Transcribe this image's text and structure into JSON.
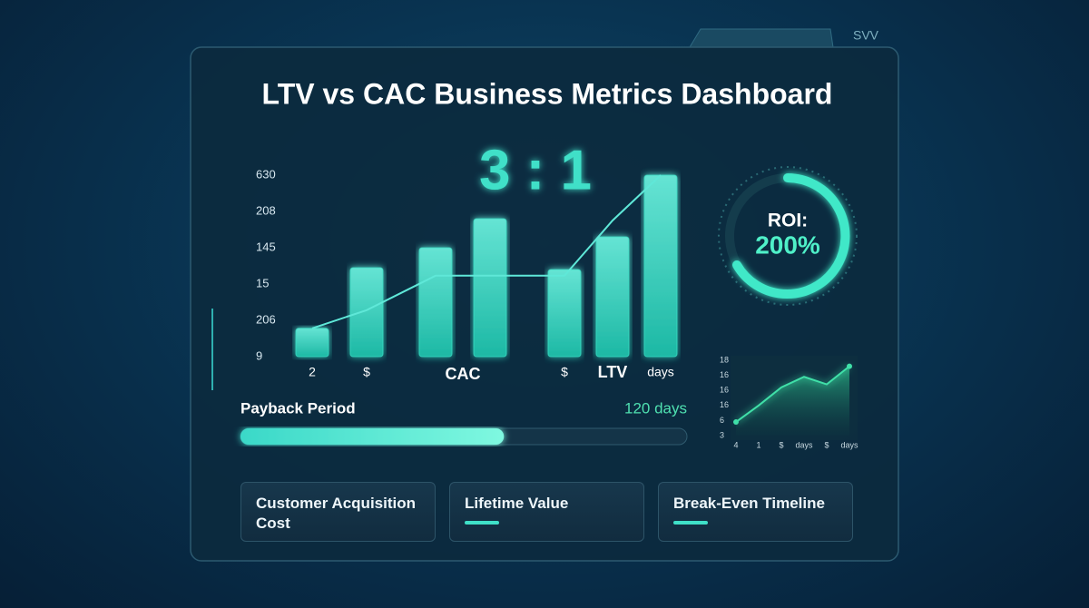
{
  "tab_label": "SVV",
  "title": "LTV vs CAC Business Metrics Dashboard",
  "ratio": "3 : 1",
  "chart_data": [
    {
      "type": "bar",
      "categories": [
        "2",
        "$",
        null,
        null,
        "$",
        "LTV",
        "days"
      ],
      "annotation": "CAC",
      "series": [
        {
          "type": "bar",
          "color": "#3ff0d2",
          "values": [
            0.78,
            2.45,
            3.0,
            3.8,
            2.4,
            3.3,
            5.0
          ]
        },
        {
          "type": "line",
          "color": "#5fe8d8",
          "values": [
            0.78,
            1.28,
            2.23,
            2.23,
            2.23,
            3.75,
            5.0
          ]
        }
      ],
      "ylim": [
        0,
        5
      ],
      "yticks": [
        {
          "value": 0,
          "label": "9"
        },
        {
          "value": 1,
          "label": "206"
        },
        {
          "value": 2,
          "label": "15"
        },
        {
          "value": 3,
          "label": "145"
        },
        {
          "value": 4,
          "label": "208"
        },
        {
          "value": 5,
          "label": "630"
        }
      ]
    },
    {
      "type": "area",
      "categories": [
        "4",
        "1",
        "$",
        "days",
        "$",
        "days"
      ],
      "values": [
        0.9,
        2.0,
        3.2,
        3.9,
        3.4,
        4.6
      ],
      "color": "#3fe0a8",
      "ylim": [
        0,
        5
      ],
      "yticks": [
        {
          "value": 0,
          "label": "3"
        },
        {
          "value": 1,
          "label": "6"
        },
        {
          "value": 2,
          "label": "16"
        },
        {
          "value": 3,
          "label": "16"
        },
        {
          "value": 4,
          "label": "16"
        },
        {
          "value": 5,
          "label": "18"
        }
      ]
    }
  ],
  "roi": {
    "label": "ROI:",
    "value": "200%"
  },
  "payback": {
    "label": "Payback Period",
    "value_label": "120 days",
    "progress": 59
  },
  "cards": [
    "Customer Acquisition Cost",
    "Lifetime Value",
    "Break-Even Timeline"
  ]
}
